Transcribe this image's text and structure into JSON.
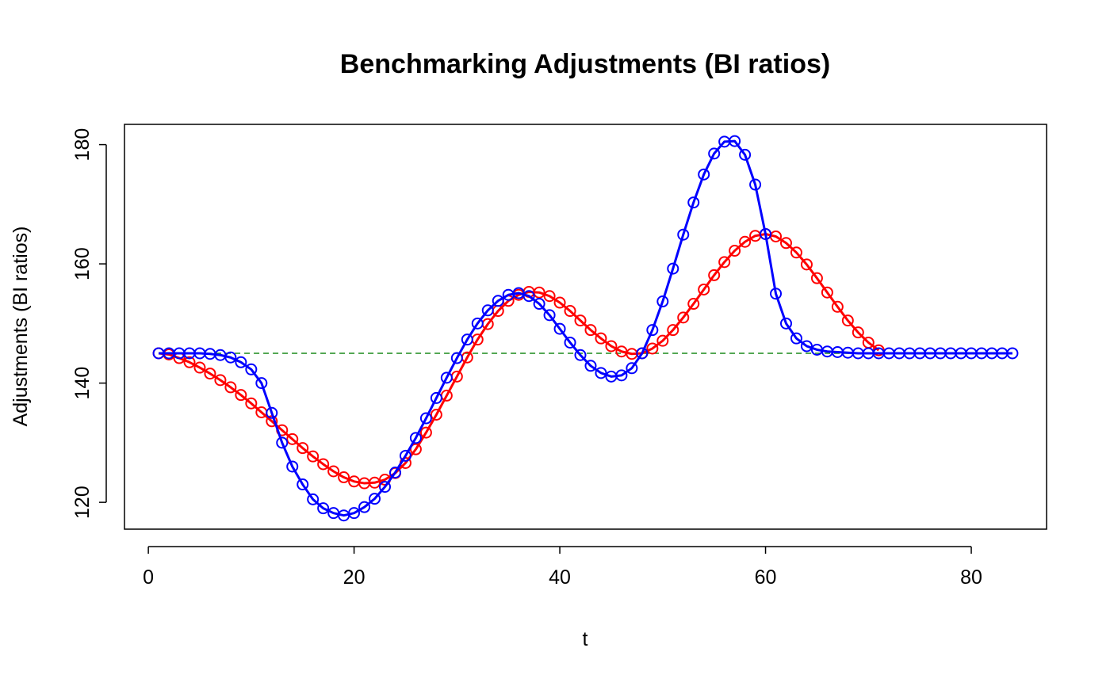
{
  "chart_data": {
    "type": "line",
    "title": "Benchmarking Adjustments (BI ratios)",
    "x_label": "t",
    "y_label": "Adjustments (BI ratios)",
    "xlim": [
      -2.32,
      87.32
    ],
    "xticks": [
      0,
      20,
      40,
      60,
      80
    ],
    "ylim": [
      115.5,
      183.4
    ],
    "yticks": [
      120,
      140,
      160,
      180
    ],
    "series": [
      {
        "color": "#1a8a1a",
        "linestyle": "dashed",
        "points": false,
        "line_width": 1.5,
        "x": [
          1,
          84
        ],
        "values": [
          145,
          145
        ]
      },
      {
        "color": "#ff0000",
        "linestyle": "solid",
        "points": true,
        "line_width": 3,
        "x": [
          1,
          2,
          3,
          4,
          5,
          6,
          7,
          8,
          9,
          10,
          11,
          12,
          13,
          14,
          15,
          16,
          17,
          18,
          19,
          20,
          21,
          22,
          23,
          24,
          25,
          26,
          27,
          28,
          29,
          30,
          31,
          32,
          33,
          34,
          35,
          36,
          37,
          38,
          39,
          40,
          41,
          42,
          43,
          44,
          45,
          46,
          47,
          48,
          49,
          50,
          51,
          52,
          53,
          54,
          55,
          56,
          57,
          58,
          59,
          60,
          61,
          62,
          63,
          64,
          65,
          66,
          67,
          68,
          69,
          70,
          71
        ],
        "values": [
          145,
          144.8,
          144.2,
          143.5,
          142.6,
          141.6,
          140.5,
          139.3,
          138.0,
          136.6,
          135.1,
          133.6,
          132.1,
          130.6,
          129.1,
          127.7,
          126.4,
          125.2,
          124.2,
          123.5,
          123.2,
          123.3,
          123.8,
          124.9,
          126.6,
          128.9,
          131.7,
          134.7,
          137.9,
          141.1,
          144.3,
          147.3,
          149.9,
          152.1,
          153.8,
          154.8,
          155.3,
          155.2,
          154.6,
          153.5,
          152.1,
          150.5,
          148.9,
          147.5,
          146.2,
          145.3,
          144.9,
          145.0,
          145.8,
          147.1,
          148.9,
          151.0,
          153.3,
          155.7,
          158.1,
          160.3,
          162.2,
          163.7,
          164.7,
          165.0,
          164.6,
          163.5,
          161.9,
          159.9,
          157.6,
          155.2,
          152.8,
          150.5,
          148.5,
          146.8,
          145.5
        ]
      },
      {
        "color": "#0000ff",
        "linestyle": "solid",
        "points": true,
        "line_width": 3,
        "x": [
          1,
          2,
          3,
          4,
          5,
          6,
          7,
          8,
          9,
          10,
          11,
          12,
          13,
          14,
          15,
          16,
          17,
          18,
          19,
          20,
          21,
          22,
          23,
          24,
          25,
          26,
          27,
          28,
          29,
          30,
          31,
          32,
          33,
          34,
          35,
          36,
          37,
          38,
          39,
          40,
          41,
          42,
          43,
          44,
          45,
          46,
          47,
          48,
          49,
          50,
          51,
          52,
          53,
          54,
          55,
          56,
          57,
          58,
          59,
          60,
          61,
          62,
          63,
          64,
          65,
          66,
          67,
          68,
          69,
          70,
          71,
          72,
          73,
          74,
          75,
          76,
          77,
          78,
          79,
          80,
          81,
          82,
          83,
          84
        ],
        "values": [
          145,
          145,
          145,
          145,
          145,
          144.9,
          144.7,
          144.3,
          143.5,
          142.3,
          140.0,
          135,
          130,
          126,
          123,
          120.5,
          119,
          118.2,
          117.8,
          118.2,
          119.2,
          120.6,
          122.6,
          125,
          127.8,
          130.8,
          134.1,
          137.5,
          140.9,
          144.2,
          147.3,
          150,
          152.2,
          153.8,
          154.8,
          155.1,
          154.6,
          153.3,
          151.4,
          149.1,
          146.8,
          144.7,
          142.9,
          141.7,
          141.1,
          141.3,
          142.5,
          145.0,
          148.9,
          153.7,
          159.2,
          164.9,
          170.3,
          175,
          178.5,
          180.5,
          180.6,
          178.3,
          173.3,
          165,
          155,
          150,
          147.5,
          146.2,
          145.6,
          145.3,
          145.2,
          145.1,
          145,
          145,
          145,
          145,
          145,
          145,
          145,
          145,
          145,
          145,
          145,
          145,
          145,
          145,
          145,
          145
        ]
      }
    ]
  }
}
